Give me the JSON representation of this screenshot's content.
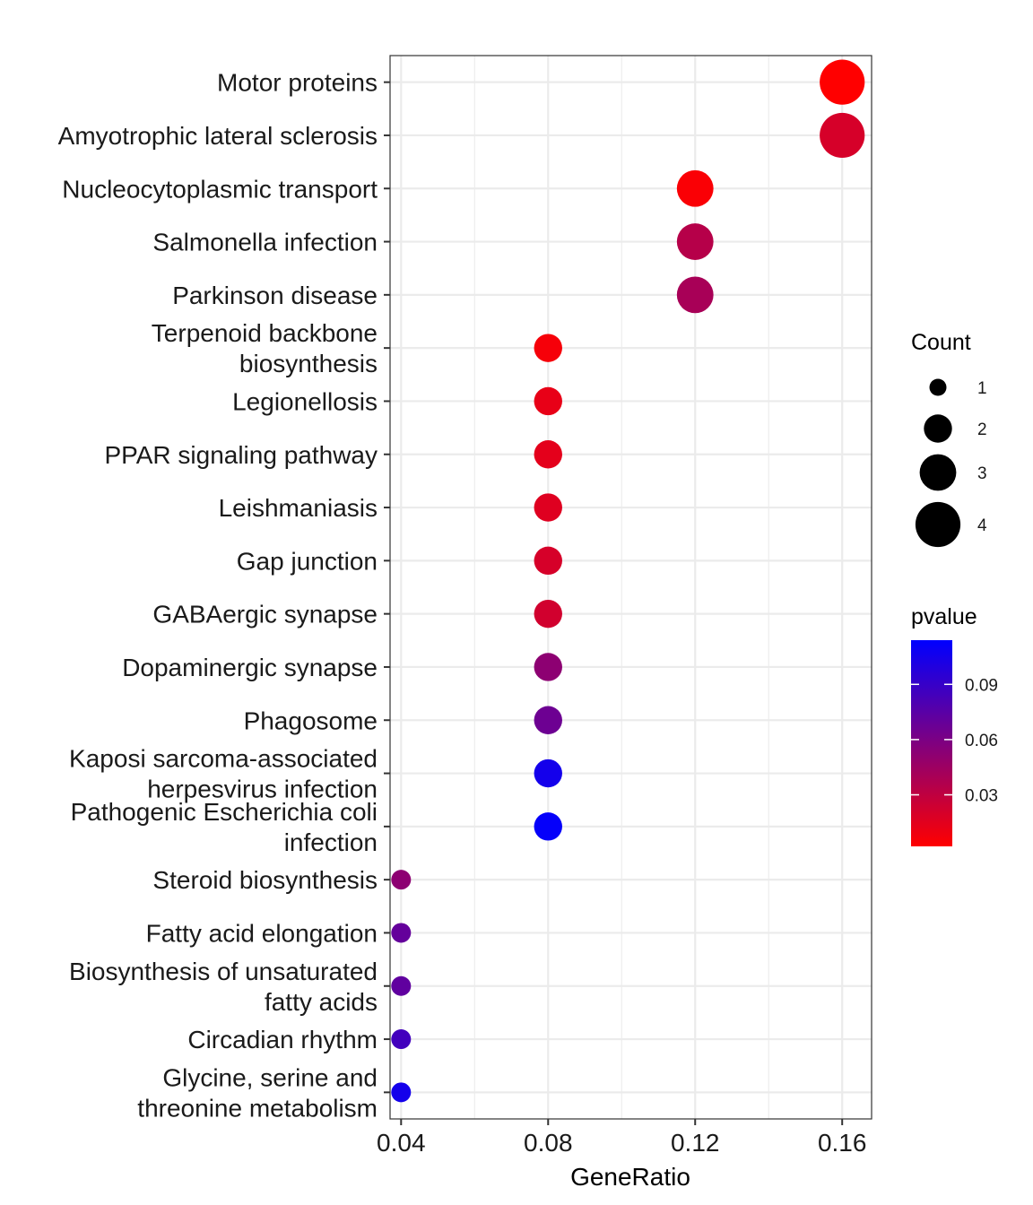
{
  "chart_data": {
    "type": "scatter",
    "xlabel": "GeneRatio",
    "ylabel": "",
    "title": "",
    "xlim": [
      0.037,
      0.168
    ],
    "x_ticks": [
      0.04,
      0.08,
      0.12,
      0.16
    ],
    "x_tick_labels": [
      "0.04",
      "0.08",
      "0.12",
      "0.16"
    ],
    "grid": true,
    "legend_position": "right",
    "points": [
      {
        "term": [
          "Motor proteins"
        ],
        "gene_ratio": 0.16,
        "count": 4,
        "pvalue": 0.002
      },
      {
        "term": [
          "Amyotrophic lateral sclerosis"
        ],
        "gene_ratio": 0.16,
        "count": 4,
        "pvalue": 0.02
      },
      {
        "term": [
          "Nucleocytoplasmic transport"
        ],
        "gene_ratio": 0.12,
        "count": 3,
        "pvalue": 0.004
      },
      {
        "term": [
          "Salmonella infection"
        ],
        "gene_ratio": 0.12,
        "count": 3,
        "pvalue": 0.034
      },
      {
        "term": [
          "Parkinson disease"
        ],
        "gene_ratio": 0.12,
        "count": 3,
        "pvalue": 0.04
      },
      {
        "term": [
          "Terpenoid backbone",
          "biosynthesis"
        ],
        "gene_ratio": 0.08,
        "count": 2,
        "pvalue": 0.006
      },
      {
        "term": [
          "Legionellosis"
        ],
        "gene_ratio": 0.08,
        "count": 2,
        "pvalue": 0.012
      },
      {
        "term": [
          "PPAR signaling pathway"
        ],
        "gene_ratio": 0.08,
        "count": 2,
        "pvalue": 0.014
      },
      {
        "term": [
          "Leishmaniasis"
        ],
        "gene_ratio": 0.08,
        "count": 2,
        "pvalue": 0.016
      },
      {
        "term": [
          "Gap junction"
        ],
        "gene_ratio": 0.08,
        "count": 2,
        "pvalue": 0.02
      },
      {
        "term": [
          "GABAergic synapse"
        ],
        "gene_ratio": 0.08,
        "count": 2,
        "pvalue": 0.022
      },
      {
        "term": [
          "Dopaminergic synapse"
        ],
        "gene_ratio": 0.08,
        "count": 2,
        "pvalue": 0.052
      },
      {
        "term": [
          "Phagosome"
        ],
        "gene_ratio": 0.08,
        "count": 2,
        "pvalue": 0.066
      },
      {
        "term": [
          "Kaposi sarcoma-associated",
          "herpesvirus infection"
        ],
        "gene_ratio": 0.08,
        "count": 2,
        "pvalue": 0.105
      },
      {
        "term": [
          "Pathogenic Escherichia coli",
          "infection"
        ],
        "gene_ratio": 0.08,
        "count": 2,
        "pvalue": 0.112
      },
      {
        "term": [
          "Steroid biosynthesis"
        ],
        "gene_ratio": 0.04,
        "count": 1,
        "pvalue": 0.052
      },
      {
        "term": [
          "Fatty acid elongation"
        ],
        "gene_ratio": 0.04,
        "count": 1,
        "pvalue": 0.07
      },
      {
        "term": [
          "Biosynthesis of unsaturated",
          "fatty acids"
        ],
        "gene_ratio": 0.04,
        "count": 1,
        "pvalue": 0.072
      },
      {
        "term": [
          "Circadian rhythm"
        ],
        "gene_ratio": 0.04,
        "count": 1,
        "pvalue": 0.085
      },
      {
        "term": [
          "Glycine, serine and",
          "threonine metabolism"
        ],
        "gene_ratio": 0.04,
        "count": 1,
        "pvalue": 0.105
      }
    ],
    "size_legend": {
      "title": "Count",
      "entries": [
        {
          "label": "1",
          "value": 1
        },
        {
          "label": "2",
          "value": 2
        },
        {
          "label": "3",
          "value": 3
        },
        {
          "label": "4",
          "value": 4
        }
      ]
    },
    "color_legend": {
      "title": "pvalue",
      "range": [
        0.002,
        0.114
      ],
      "low_color": "#ff0000",
      "high_color": "#0000ff",
      "ticks": [
        {
          "label": "0.03",
          "value": 0.03
        },
        {
          "label": "0.06",
          "value": 0.06
        },
        {
          "label": "0.09",
          "value": 0.09
        }
      ]
    }
  }
}
